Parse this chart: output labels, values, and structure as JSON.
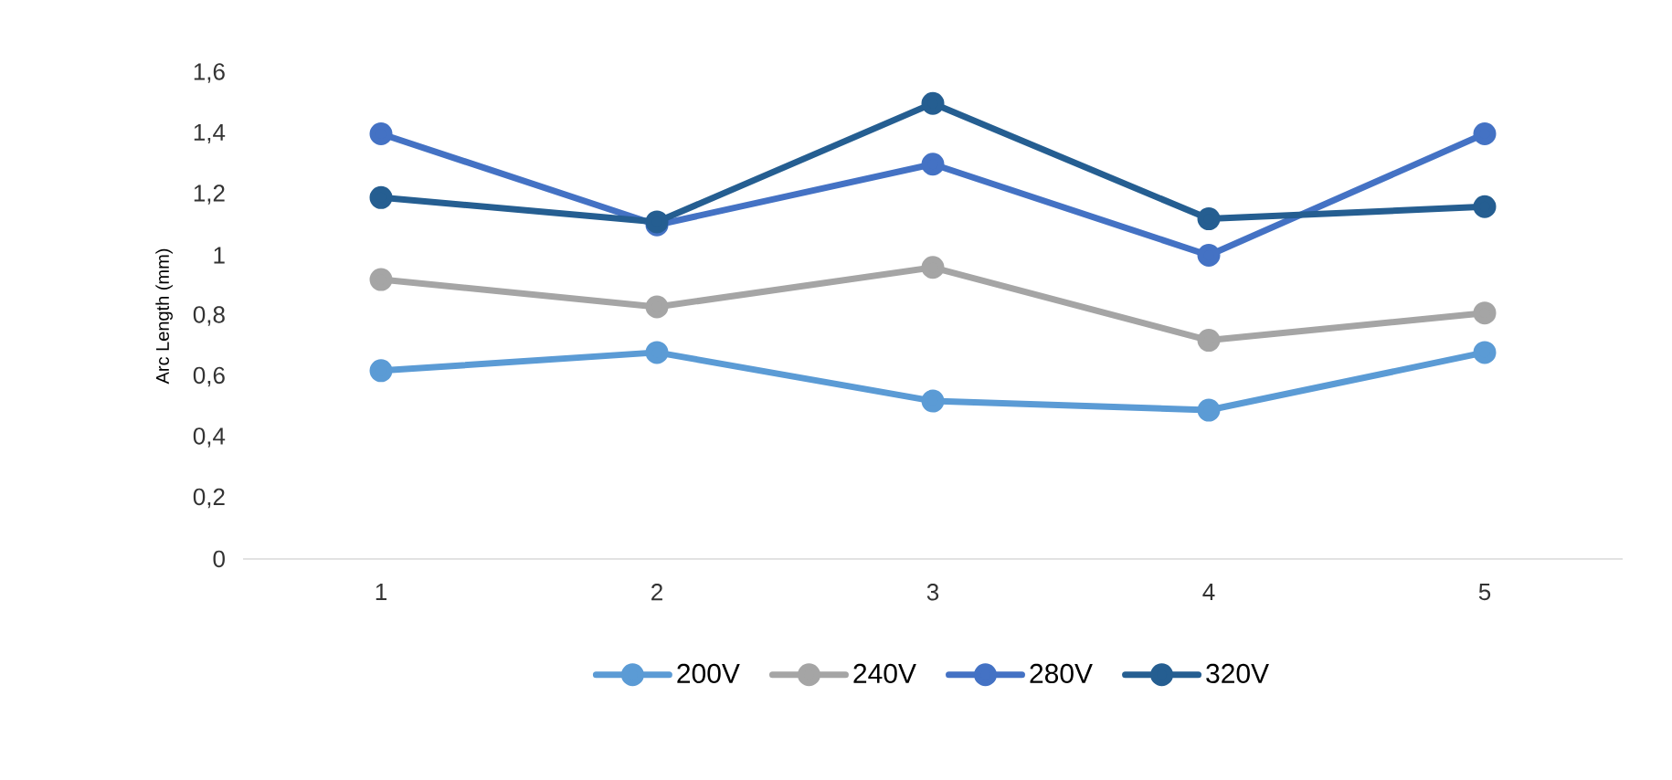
{
  "chart_data": {
    "type": "line",
    "ylabel": "Arc Length (mm)",
    "categories": [
      "1",
      "2",
      "3",
      "4",
      "5"
    ],
    "series": [
      {
        "name": "200V",
        "color": "#5b9bd5",
        "values": [
          0.62,
          0.68,
          0.52,
          0.49,
          0.68
        ]
      },
      {
        "name": "240V",
        "color": "#a5a5a5",
        "values": [
          0.92,
          0.83,
          0.96,
          0.72,
          0.81
        ]
      },
      {
        "name": "280V",
        "color": "#4472c4",
        "values": [
          1.4,
          1.1,
          1.3,
          1.0,
          1.4
        ]
      },
      {
        "name": "320V",
        "color": "#255e91",
        "values": [
          1.19,
          1.11,
          1.5,
          1.12,
          1.16
        ]
      }
    ],
    "ylim": [
      0,
      1.6
    ],
    "yticks": [
      0,
      {
        "value": 0.2,
        "label": "0,2"
      },
      {
        "value": 0.4,
        "label": "0,4"
      },
      {
        "value": 0.6,
        "label": "0,6"
      },
      {
        "value": 0.8,
        "label": "0,8"
      },
      1,
      {
        "value": 1.2,
        "label": "1,2"
      },
      {
        "value": 1.4,
        "label": "1,4"
      },
      {
        "value": 1.6,
        "label": "1,6"
      }
    ],
    "legend": "bottom",
    "marker": "circle",
    "line_style": "solid"
  }
}
